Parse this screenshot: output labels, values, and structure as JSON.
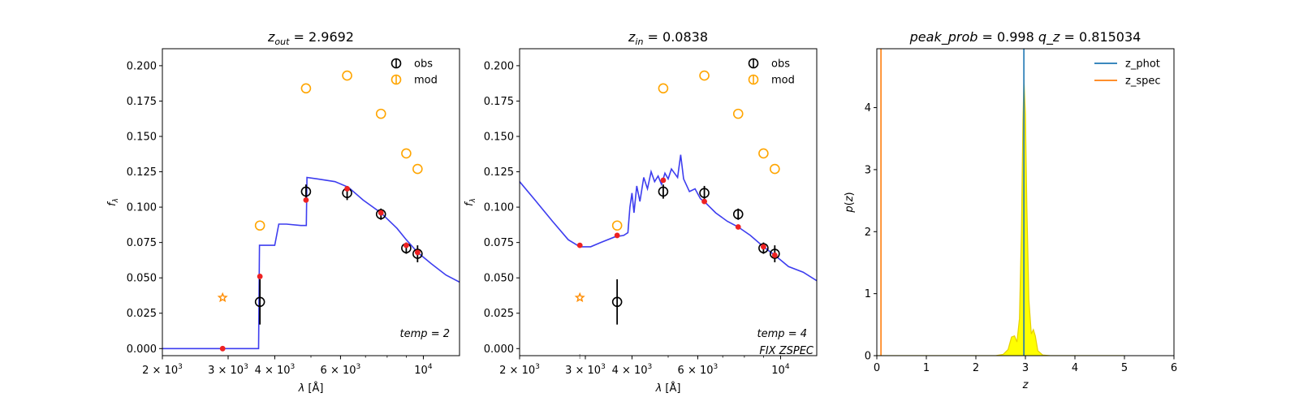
{
  "colors": {
    "obs": "#000000",
    "mod": "#ffa500",
    "model_line": "#3333ee",
    "model_points": "#ee2222",
    "star": "#ff8c00",
    "z_phot": "#1f77b4",
    "z_spec": "#ff7f0e",
    "pdf_fill": "#ffff00",
    "pdf_edge": "#e6d000"
  },
  "chart_data": [
    {
      "type": "scatter",
      "title": "z_out = 2.9692",
      "title_parts": {
        "var": "z",
        "sub": "out",
        "value": "= 2.9692"
      },
      "xlabel": "λ [Å]",
      "ylabel": "f_λ",
      "xscale": "log",
      "xlim": [
        2000,
        12500
      ],
      "ylim": [
        -0.005,
        0.212
      ],
      "xticks": [
        {
          "v": 2000,
          "base": "2 × 10",
          "exp": "3"
        },
        {
          "v": 3000,
          "base": "3 × 10",
          "exp": "3"
        },
        {
          "v": 4000,
          "base": "4 × 10",
          "exp": "3"
        },
        {
          "v": 6000,
          "base": "6 × 10",
          "exp": "3"
        },
        {
          "v": 10000,
          "base": "10",
          "exp": "4"
        }
      ],
      "yticks": [
        {
          "v": 0.0,
          "label": "0.000"
        },
        {
          "v": 0.025,
          "label": "0.025"
        },
        {
          "v": 0.05,
          "label": "0.050"
        },
        {
          "v": 0.075,
          "label": "0.075"
        },
        {
          "v": 0.1,
          "label": "0.100"
        },
        {
          "v": 0.125,
          "label": "0.125"
        },
        {
          "v": 0.15,
          "label": "0.150"
        },
        {
          "v": 0.175,
          "label": "0.175"
        },
        {
          "v": 0.2,
          "label": "0.200"
        }
      ],
      "legend": [
        {
          "label": "obs",
          "kind": "obs"
        },
        {
          "label": "mod",
          "kind": "mod"
        }
      ],
      "legend_loc": "upper right",
      "annotations": [
        "temp = 2"
      ],
      "obs": [
        {
          "x": 3650,
          "y": 0.033,
          "err": 0.016
        },
        {
          "x": 4850,
          "y": 0.111,
          "err": 0.005
        },
        {
          "x": 6250,
          "y": 0.11,
          "err": 0.005
        },
        {
          "x": 7700,
          "y": 0.095,
          "err": 0.004
        },
        {
          "x": 9000,
          "y": 0.071,
          "err": 0.004
        },
        {
          "x": 9650,
          "y": 0.067,
          "err": 0.006
        }
      ],
      "mod": [
        {
          "x": 3650,
          "y": 0.087
        },
        {
          "x": 4850,
          "y": 0.184
        },
        {
          "x": 6250,
          "y": 0.193
        },
        {
          "x": 7700,
          "y": 0.166
        },
        {
          "x": 9000,
          "y": 0.138
        },
        {
          "x": 9650,
          "y": 0.127
        }
      ],
      "star": {
        "x": 2900,
        "y": 0.036
      },
      "model_points": [
        {
          "x": 2900,
          "y": 0.0
        },
        {
          "x": 3650,
          "y": 0.051
        },
        {
          "x": 4850,
          "y": 0.105
        },
        {
          "x": 6250,
          "y": 0.113
        },
        {
          "x": 7700,
          "y": 0.096
        },
        {
          "x": 9000,
          "y": 0.073
        },
        {
          "x": 9650,
          "y": 0.068
        }
      ],
      "model_line": [
        [
          2000,
          0.0
        ],
        [
          3620,
          0.0
        ],
        [
          3640,
          0.073
        ],
        [
          4000,
          0.073
        ],
        [
          4100,
          0.088
        ],
        [
          4300,
          0.088
        ],
        [
          4700,
          0.087
        ],
        [
          4860,
          0.087
        ],
        [
          4880,
          0.121
        ],
        [
          5200,
          0.12
        ],
        [
          5800,
          0.118
        ],
        [
          6300,
          0.114
        ],
        [
          6900,
          0.105
        ],
        [
          7700,
          0.096
        ],
        [
          8500,
          0.085
        ],
        [
          9000,
          0.077
        ],
        [
          9650,
          0.068
        ],
        [
          10500,
          0.06
        ],
        [
          11500,
          0.052
        ],
        [
          12500,
          0.047
        ]
      ]
    },
    {
      "type": "scatter",
      "title": "z_in = 0.0838",
      "title_parts": {
        "var": "z",
        "sub": "in",
        "value": "= 0.0838"
      },
      "xlabel": "λ [Å]",
      "ylabel": "f_λ",
      "xscale": "log",
      "xlim": [
        2000,
        12500
      ],
      "ylim": [
        -0.005,
        0.212
      ],
      "xticks": [
        {
          "v": 2000,
          "base": "2 × 10",
          "exp": "3"
        },
        {
          "v": 3000,
          "base": "3 × 10",
          "exp": "3"
        },
        {
          "v": 4000,
          "base": "4 × 10",
          "exp": "3"
        },
        {
          "v": 6000,
          "base": "6 × 10",
          "exp": "3"
        },
        {
          "v": 10000,
          "base": "10",
          "exp": "4"
        }
      ],
      "yticks": [
        {
          "v": 0.0,
          "label": "0.000"
        },
        {
          "v": 0.025,
          "label": "0.025"
        },
        {
          "v": 0.05,
          "label": "0.050"
        },
        {
          "v": 0.075,
          "label": "0.075"
        },
        {
          "v": 0.1,
          "label": "0.100"
        },
        {
          "v": 0.125,
          "label": "0.125"
        },
        {
          "v": 0.15,
          "label": "0.150"
        },
        {
          "v": 0.175,
          "label": "0.175"
        },
        {
          "v": 0.2,
          "label": "0.200"
        }
      ],
      "legend": [
        {
          "label": "obs",
          "kind": "obs"
        },
        {
          "label": "mod",
          "kind": "mod"
        }
      ],
      "legend_loc": "upper right",
      "annotations": [
        "temp = 4",
        "FIX ZSPEC"
      ],
      "obs": [
        {
          "x": 3650,
          "y": 0.033,
          "err": 0.016
        },
        {
          "x": 4850,
          "y": 0.111,
          "err": 0.005
        },
        {
          "x": 6250,
          "y": 0.11,
          "err": 0.005
        },
        {
          "x": 7700,
          "y": 0.095,
          "err": 0.004
        },
        {
          "x": 9000,
          "y": 0.071,
          "err": 0.004
        },
        {
          "x": 9650,
          "y": 0.067,
          "err": 0.006
        }
      ],
      "mod": [
        {
          "x": 3650,
          "y": 0.087
        },
        {
          "x": 4850,
          "y": 0.184
        },
        {
          "x": 6250,
          "y": 0.193
        },
        {
          "x": 7700,
          "y": 0.166
        },
        {
          "x": 9000,
          "y": 0.138
        },
        {
          "x": 9650,
          "y": 0.127
        }
      ],
      "star": {
        "x": 2900,
        "y": 0.036
      },
      "model_points": [
        {
          "x": 2900,
          "y": 0.073
        },
        {
          "x": 3650,
          "y": 0.08
        },
        {
          "x": 4850,
          "y": 0.119
        },
        {
          "x": 6250,
          "y": 0.104
        },
        {
          "x": 7700,
          "y": 0.086
        },
        {
          "x": 9000,
          "y": 0.072
        },
        {
          "x": 9650,
          "y": 0.066
        }
      ],
      "model_line": [
        [
          2000,
          0.118
        ],
        [
          2200,
          0.105
        ],
        [
          2450,
          0.09
        ],
        [
          2700,
          0.077
        ],
        [
          2900,
          0.072
        ],
        [
          3100,
          0.072
        ],
        [
          3300,
          0.075
        ],
        [
          3600,
          0.079
        ],
        [
          3800,
          0.08
        ],
        [
          3900,
          0.082
        ],
        [
          3950,
          0.1
        ],
        [
          4000,
          0.11
        ],
        [
          4050,
          0.096
        ],
        [
          4120,
          0.115
        ],
        [
          4200,
          0.104
        ],
        [
          4300,
          0.121
        ],
        [
          4400,
          0.113
        ],
        [
          4500,
          0.125
        ],
        [
          4600,
          0.118
        ],
        [
          4700,
          0.122
        ],
        [
          4800,
          0.116
        ],
        [
          4900,
          0.124
        ],
        [
          5000,
          0.12
        ],
        [
          5100,
          0.127
        ],
        [
          5200,
          0.124
        ],
        [
          5300,
          0.121
        ],
        [
          5400,
          0.137
        ],
        [
          5500,
          0.12
        ],
        [
          5700,
          0.111
        ],
        [
          5900,
          0.113
        ],
        [
          6100,
          0.106
        ],
        [
          6300,
          0.103
        ],
        [
          6700,
          0.096
        ],
        [
          7200,
          0.09
        ],
        [
          7700,
          0.086
        ],
        [
          8300,
          0.08
        ],
        [
          9000,
          0.072
        ],
        [
          9650,
          0.066
        ],
        [
          10500,
          0.058
        ],
        [
          11500,
          0.054
        ],
        [
          12500,
          0.048
        ]
      ]
    },
    {
      "type": "area",
      "title": "peak_prob = 0.998      q_z = 0.815034",
      "title_parts": {
        "left": "peak_prob",
        "left_value": "= 0.998",
        "right": "q_z",
        "right_value": "= 0.815034"
      },
      "xlabel": "z",
      "ylabel": "p(z)",
      "xlim": [
        0,
        6
      ],
      "ylim": [
        0,
        4.95
      ],
      "xticks": [
        {
          "v": 0,
          "label": "0"
        },
        {
          "v": 1,
          "label": "1"
        },
        {
          "v": 2,
          "label": "2"
        },
        {
          "v": 3,
          "label": "3"
        },
        {
          "v": 4,
          "label": "4"
        },
        {
          "v": 5,
          "label": "5"
        },
        {
          "v": 6,
          "label": "6"
        }
      ],
      "yticks": [
        {
          "v": 0,
          "label": "0"
        },
        {
          "v": 1,
          "label": "1"
        },
        {
          "v": 2,
          "label": "2"
        },
        {
          "v": 3,
          "label": "3"
        },
        {
          "v": 4,
          "label": "4"
        }
      ],
      "legend": [
        {
          "label": "z_phot",
          "kind": "z_phot"
        },
        {
          "label": "z_spec",
          "kind": "z_spec"
        }
      ],
      "legend_loc": "upper right",
      "z_phot": 2.9692,
      "z_spec": 0.0838,
      "pdf": [
        [
          0,
          0
        ],
        [
          2.4,
          0.0
        ],
        [
          2.55,
          0.02
        ],
        [
          2.65,
          0.1
        ],
        [
          2.72,
          0.3
        ],
        [
          2.78,
          0.32
        ],
        [
          2.83,
          0.22
        ],
        [
          2.88,
          0.6
        ],
        [
          2.92,
          2.0
        ],
        [
          2.95,
          3.8
        ],
        [
          2.97,
          4.45
        ],
        [
          3.0,
          3.9
        ],
        [
          3.03,
          2.4
        ],
        [
          3.07,
          0.9
        ],
        [
          3.12,
          0.35
        ],
        [
          3.16,
          0.42
        ],
        [
          3.2,
          0.32
        ],
        [
          3.25,
          0.08
        ],
        [
          3.35,
          0.01
        ],
        [
          3.5,
          0.0
        ],
        [
          5.0,
          0.0
        ]
      ]
    }
  ]
}
